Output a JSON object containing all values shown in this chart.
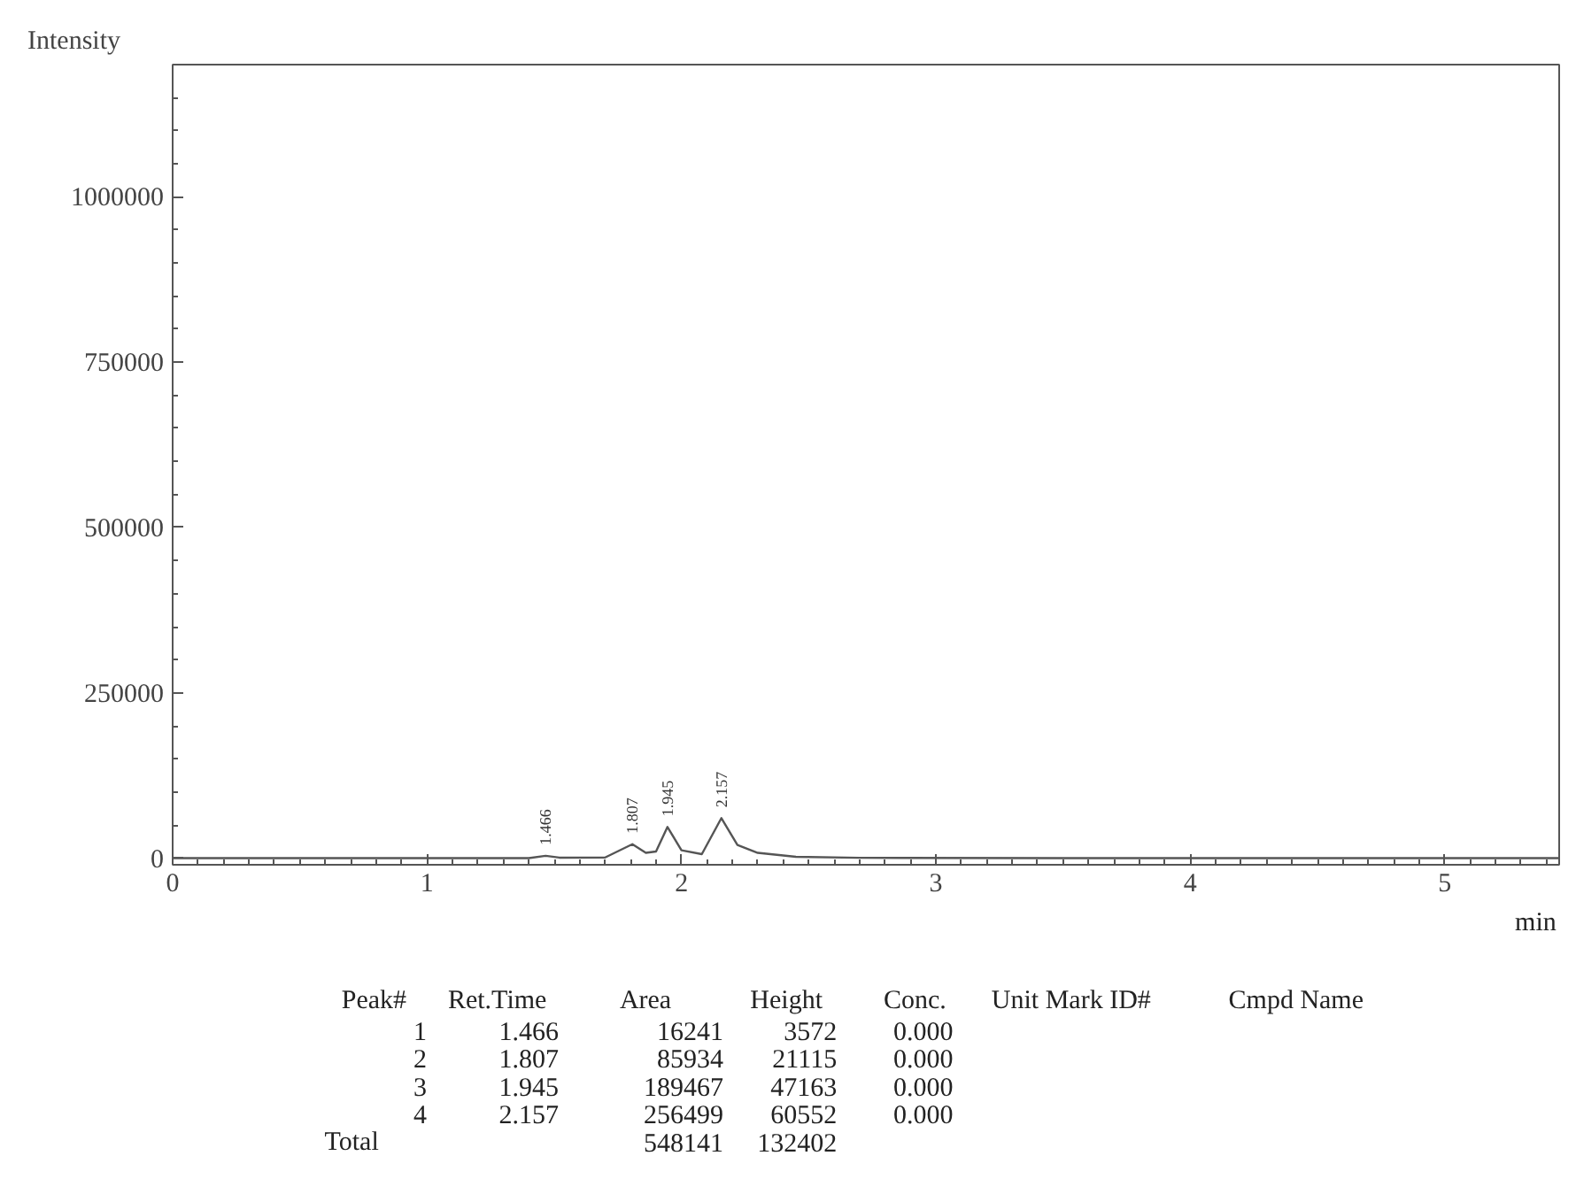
{
  "chart_data": {
    "type": "line",
    "xlabel": "min",
    "ylabel": "Intensity",
    "x": [
      0,
      0.5,
      1.0,
      1.4,
      1.466,
      1.52,
      1.7,
      1.807,
      1.86,
      1.9,
      1.945,
      2.0,
      2.08,
      2.157,
      2.22,
      2.3,
      2.45,
      2.7,
      3.5,
      5.45
    ],
    "series": [
      {
        "color": "#555555",
        "values": [
          0,
          0,
          0,
          0,
          3572,
          800,
          1000,
          21115,
          8000,
          10000,
          47163,
          12000,
          6000,
          60552,
          20000,
          8000,
          2000,
          500,
          0,
          0
        ]
      }
    ],
    "xlim": [
      0,
      5.45
    ],
    "ylim": [
      -10000,
      1200000
    ],
    "xticks": [
      0,
      1,
      2,
      3,
      4,
      5
    ],
    "yticks": [
      0,
      250000,
      500000,
      750000,
      1000000
    ],
    "grid": false,
    "marker": "none",
    "line_style": "solid",
    "annotations": [
      "Peak#",
      "Ret.Time",
      "Area",
      "Height",
      "Conc.",
      "Unit Mark ID#",
      "Cmpd Name",
      "1",
      "1.466",
      "16241",
      "3572",
      "0.000",
      "2",
      "1.807",
      "85934",
      "21115",
      "0.000",
      "3",
      "1.945",
      "189467",
      "47163",
      "0.000",
      "4",
      "2.157",
      "256499",
      "60552",
      "0.000",
      "Total",
      "548141",
      "132402",
      {
        "text": "1.466",
        "x": 1.466,
        "y": 3572
      },
      {
        "text": "1.807",
        "x": 1.807,
        "y": 21115
      },
      {
        "text": "1.945",
        "x": 1.945,
        "y": 47163
      },
      {
        "text": "2.157",
        "x": 2.157,
        "y": 60552
      }
    ]
  }
}
